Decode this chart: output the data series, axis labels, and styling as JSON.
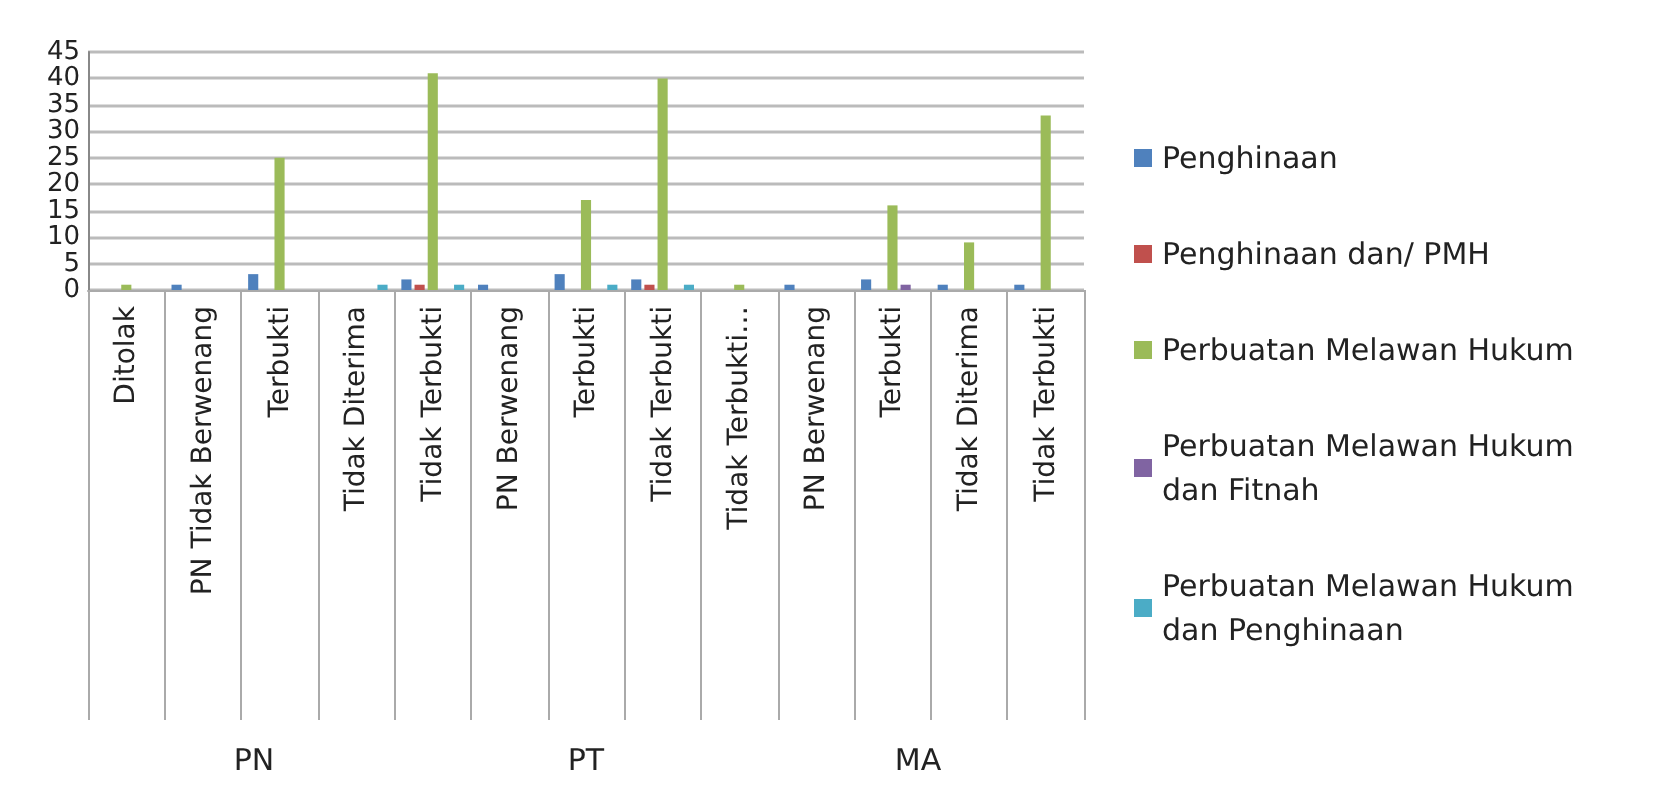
{
  "chart_data": {
    "type": "bar",
    "categories": [
      "Ditolak",
      "PN Tidak Berwenang",
      "Terbukti",
      "Tidak Diterima",
      "Tidak Terbukti",
      "PN Berwenang",
      "Terbukti",
      "Tidak Terbukti",
      "Tidak Terbukti…",
      "PN Berwenang",
      "Terbukti",
      "Tidak Diterima",
      "Tidak Terbukti"
    ],
    "series": [
      {
        "name": "Penghinaan",
        "color": "#4f81bd",
        "values": [
          null,
          1,
          3,
          null,
          2,
          1,
          3,
          2,
          null,
          1,
          2,
          1,
          1
        ]
      },
      {
        "name": "Penghinaan dan/ PMH",
        "color": "#c0504d",
        "values": [
          null,
          null,
          null,
          null,
          1,
          null,
          null,
          1,
          null,
          null,
          null,
          null,
          null
        ]
      },
      {
        "name": "Perbuatan Melawan Hukum",
        "color": "#9bbb59",
        "values": [
          1,
          null,
          25,
          null,
          41,
          null,
          17,
          40,
          1,
          null,
          16,
          9,
          33
        ]
      },
      {
        "name": "Perbuatan Melawan Hukum dan Fitnah",
        "color": "#8064a2",
        "values": [
          null,
          null,
          null,
          null,
          null,
          null,
          null,
          null,
          null,
          null,
          1,
          null,
          null
        ]
      },
      {
        "name": "Perbuatan Melawan Hukum dan Penghinaan",
        "color": "#4bacc6",
        "values": [
          null,
          null,
          null,
          1,
          1,
          null,
          1,
          1,
          null,
          null,
          null,
          null,
          null
        ]
      }
    ],
    "annotations": [
      "PN",
      "PT",
      "MA"
    ],
    "ylim": [
      0,
      45
    ],
    "yticks": [
      0,
      5,
      10,
      15,
      20,
      25,
      30,
      35,
      40,
      45
    ],
    "grid": "y",
    "legend": "right"
  }
}
